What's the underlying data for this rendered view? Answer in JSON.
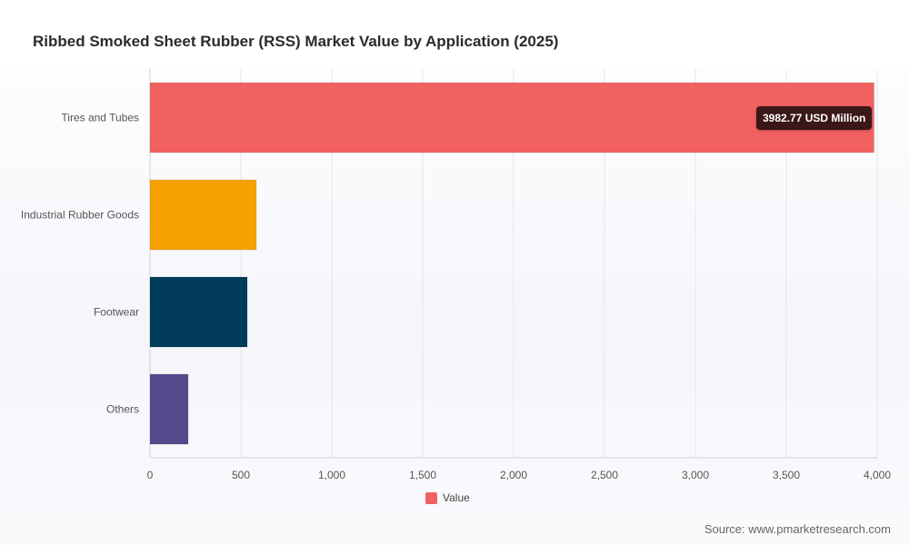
{
  "chart_data": {
    "type": "bar",
    "orientation": "horizontal",
    "title": "Ribbed Smoked Sheet Rubber (RSS) Market Value by Application (2025)",
    "categories": [
      "Tires and Tubes",
      "Industrial Rubber Goods",
      "Footwear",
      "Others"
    ],
    "series": [
      {
        "name": "Value",
        "values": [
          3982.77,
          585,
          535,
          210
        ],
        "colors": [
          "#f26161",
          "#f5a200",
          "#003b5c",
          "#554b8c"
        ]
      }
    ],
    "xlim": [
      0,
      4000
    ],
    "xticks": [
      "0",
      "500",
      "1,000",
      "1,500",
      "2,000",
      "2,500",
      "3,000",
      "3,500",
      "4,000"
    ],
    "grid": true,
    "legend_position": "bottom-center",
    "tooltip": "3982.77 USD Million"
  },
  "legend": {
    "label": "Value",
    "color": "#f26161"
  },
  "source": "Source: www.pmarketresearch.com"
}
